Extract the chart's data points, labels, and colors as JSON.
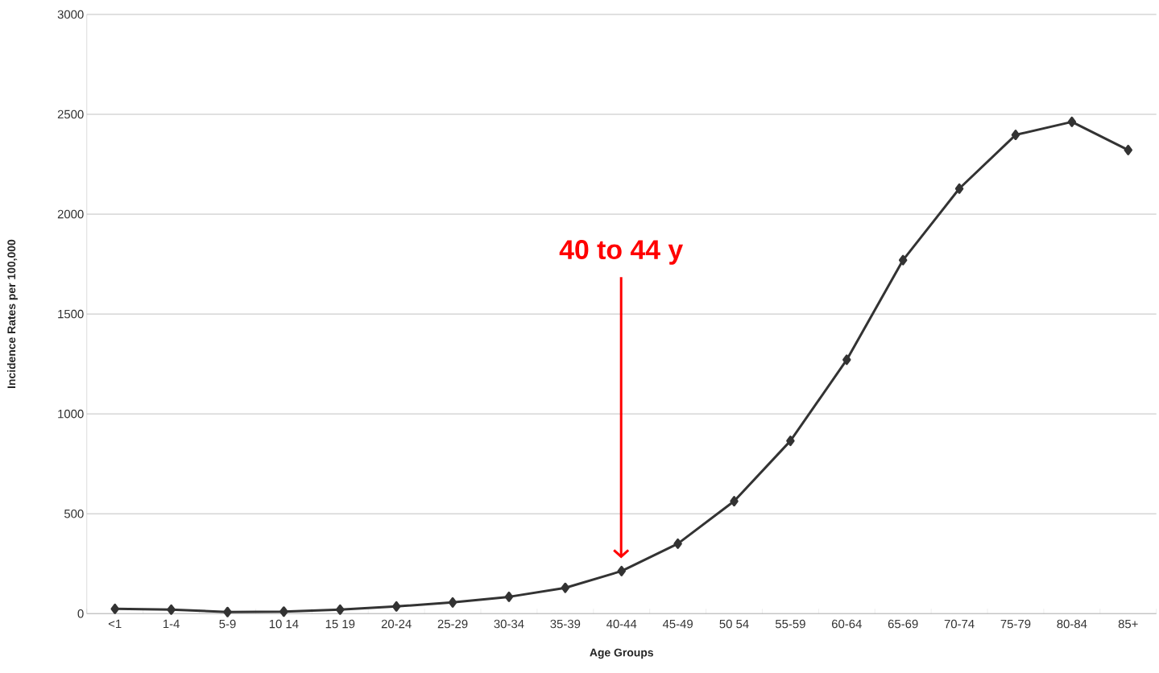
{
  "chart_data": {
    "type": "line",
    "xlabel": "Age Groups",
    "ylabel": "Incidence Rates per 100,000",
    "categories": [
      "<1",
      "1-4",
      "5-9",
      "10 14",
      "15 19",
      "20-24",
      "25-29",
      "30-34",
      "35-39",
      "40-44",
      "45-49",
      "50 54",
      "55-59",
      "60-64",
      "65-69",
      "70-74",
      "75-79",
      "80-84",
      "85+"
    ],
    "values": [
      24,
      20,
      8,
      10,
      20,
      36,
      56,
      84,
      129,
      213,
      350,
      563,
      865,
      1271,
      1770,
      2128,
      2397,
      2462,
      2321
    ],
    "color": "#333333",
    "marker": "diamond",
    "line_style": "solid",
    "grid": "y",
    "ylim": [
      0,
      3000
    ],
    "yticks": [
      0,
      500,
      1000,
      1500,
      2000,
      2500,
      3000
    ],
    "annotations": [
      "40 to 44 y"
    ]
  }
}
